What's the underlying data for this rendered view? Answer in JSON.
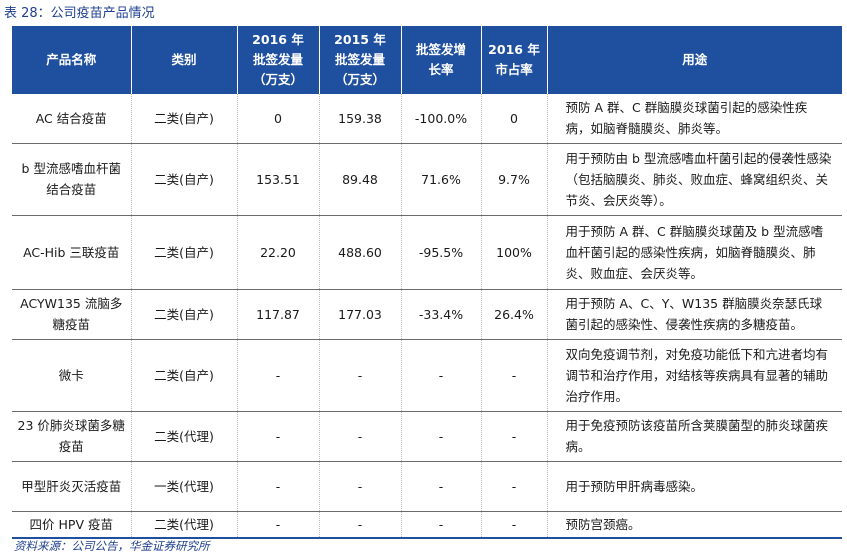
{
  "caption": "表 28：公司疫苗产品情况",
  "headers": {
    "name": "产品名称",
    "category": "类别",
    "batch2016": [
      "2016 年",
      "批签发量",
      "（万支）"
    ],
    "batch2015": [
      "2015 年",
      "批签发量",
      "（万支）"
    ],
    "growth": [
      "批签发增",
      "长率"
    ],
    "share": [
      "2016 年",
      "市占率"
    ],
    "use": "用途"
  },
  "rows": [
    {
      "name": "AC 结合疫苗",
      "category": "二类(自产)",
      "b2016": "0",
      "b2015": "159.38",
      "growth": "-100.0%",
      "share": "0",
      "use": "预防 A 群、C 群脑膜炎球菌引起的感染性疾病，如脑脊髓膜炎、肺炎等。"
    },
    {
      "name": "b 型流感嗜血杆菌结合疫苗",
      "category": "二类(自产)",
      "b2016": "153.51",
      "b2015": "89.48",
      "growth": "71.6%",
      "share": "9.7%",
      "use": "用于预防由 b 型流感嗜血杆菌引起的侵袭性感染（包括脑膜炎、肺炎、败血症、蜂窝组织炎、关节炎、会厌炎等）。"
    },
    {
      "name": "AC-Hib 三联疫苗",
      "category": "二类(自产)",
      "b2016": "22.20",
      "b2015": "488.60",
      "growth": "-95.5%",
      "share": "100%",
      "use": "用于预防 A 群、C 群脑膜炎球菌及 b 型流感嗜血杆菌引起的感染性疾病，如脑脊髓膜炎、肺炎、败血症、会厌炎等。"
    },
    {
      "name": "ACYW135 流脑多糖疫苗",
      "category": "二类(自产)",
      "b2016": "117.87",
      "b2015": "177.03",
      "growth": "-33.4%",
      "share": "26.4%",
      "use": "用于预防 A、C、Y、W135 群脑膜炎奈瑟氏球菌引起的感染性、侵袭性疾病的多糖疫苗。"
    },
    {
      "name": "微卡",
      "category": "二类(自产)",
      "b2016": "-",
      "b2015": "-",
      "growth": "-",
      "share": "-",
      "use": "双向免疫调节剂，对免疫功能低下和亢进者均有调节和治疗作用，对结核等疾病具有显著的辅助治疗作用。"
    },
    {
      "name": "23 价肺炎球菌多糖疫苗",
      "category": "二类(代理)",
      "b2016": "-",
      "b2015": "-",
      "growth": "-",
      "share": "-",
      "use": "用于免疫预防该疫苗所含荚膜菌型的肺炎球菌疾病。"
    },
    {
      "name": "甲型肝炎灭活疫苗",
      "category": "一类(代理)",
      "b2016": "-",
      "b2015": "-",
      "growth": "-",
      "share": "-",
      "use": "用于预防甲肝病毒感染。"
    },
    {
      "name": "四价 HPV 疫苗",
      "category": "二类(代理)",
      "b2016": "-",
      "b2015": "-",
      "growth": "-",
      "share": "-",
      "use": "预防宫颈癌。"
    }
  ],
  "source": "资料来源：公司公告，华金证券研究所"
}
